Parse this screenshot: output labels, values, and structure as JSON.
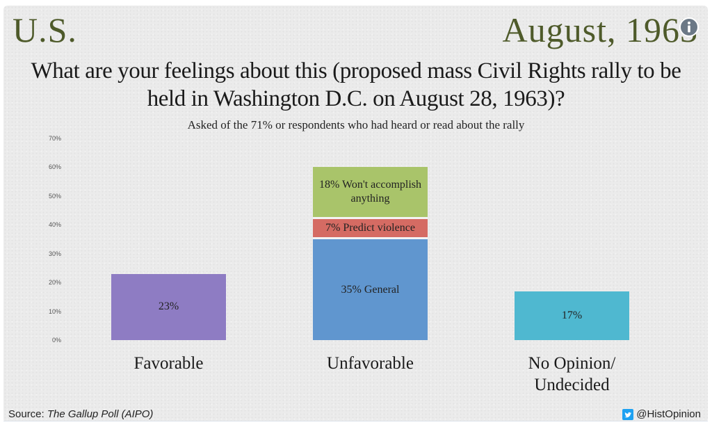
{
  "header": {
    "region": "U.S.",
    "date": "August, 1963",
    "info_icon": "info-icon"
  },
  "title": "What are your feelings about this (proposed mass Civil Rights rally to be held in Washington D.C. on August 28, 1963)?",
  "subtitle": "Asked of the 71% or respondents who had heard or read about the rally",
  "footer": {
    "source_prefix": "Source: ",
    "source_name": "The Gallup Poll (AIPO)",
    "handle": "@HistOpinion",
    "twitter_icon": "twitter-icon"
  },
  "chart_data": {
    "type": "bar",
    "stacked": true,
    "categories": [
      "Favorable",
      "Unfavorable",
      "No Opinion/ Undecided"
    ],
    "ylim": [
      0,
      70
    ],
    "yticks": [
      "0%",
      "10%",
      "20%",
      "30%",
      "40%",
      "50%",
      "60%",
      "70%"
    ],
    "bars": [
      {
        "category": "Favorable",
        "segments": [
          {
            "value": 23,
            "label": "23%",
            "color": "#8e7cc3"
          }
        ]
      },
      {
        "category": "Unfavorable",
        "segments": [
          {
            "value": 35,
            "label": "35% General",
            "color": "#6096cf"
          },
          {
            "value": 7,
            "label": "7% Predict violence",
            "color": "#d56b63"
          },
          {
            "value": 18,
            "label": "18% Won't accomplish anything",
            "color": "#a9c46a"
          }
        ]
      },
      {
        "category": "No Opinion/ Undecided",
        "segments": [
          {
            "value": 17,
            "label": "17%",
            "color": "#4fb8d0"
          }
        ]
      }
    ]
  }
}
